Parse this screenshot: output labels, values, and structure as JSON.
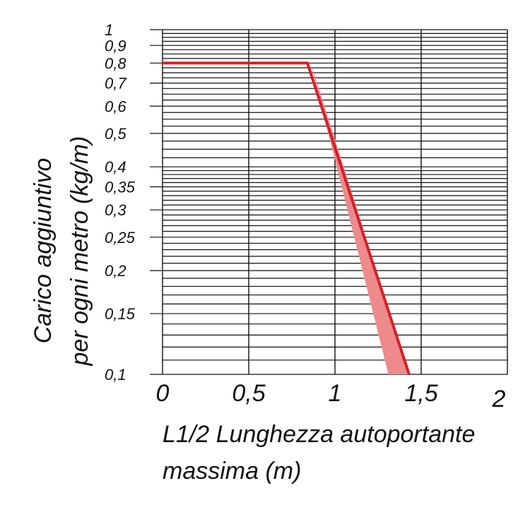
{
  "chart_data": {
    "type": "line",
    "title": "",
    "xlabel": [
      "L1/2 Lunghezza autoportante",
      "massima (m)"
    ],
    "ylabel": [
      "Carico aggiuntivo",
      "per ogni metro (kg/m)"
    ],
    "xlim": [
      0,
      2
    ],
    "ylim": [
      0.1,
      1
    ],
    "y_scale": "log",
    "grid": true,
    "x_ticks": [
      {
        "value": 0,
        "label": "0"
      },
      {
        "value": 0.5,
        "label": "0,5"
      },
      {
        "value": 1,
        "label": "1"
      },
      {
        "value": 1.5,
        "label": "1,5"
      },
      {
        "value": 2,
        "label": "2"
      }
    ],
    "y_ticks": [
      {
        "value": 1,
        "label": "1"
      },
      {
        "value": 0.9,
        "label": "0,9"
      },
      {
        "value": 0.8,
        "label": "0,8"
      },
      {
        "value": 0.7,
        "label": "0,7"
      },
      {
        "value": 0.6,
        "label": "0,6"
      },
      {
        "value": 0.5,
        "label": "0,5"
      },
      {
        "value": 0.4,
        "label": "0,4"
      },
      {
        "value": 0.35,
        "label": "0,35"
      },
      {
        "value": 0.3,
        "label": "0,3"
      },
      {
        "value": 0.25,
        "label": "0,25"
      },
      {
        "value": 0.2,
        "label": "0,2"
      },
      {
        "value": 0.15,
        "label": "0,15"
      },
      {
        "value": 0.1,
        "label": "0,1"
      }
    ],
    "series": [
      {
        "points": [
          [
            0,
            0.8
          ],
          [
            0.84,
            0.8
          ],
          [
            1.43,
            0.1
          ]
        ],
        "color": "#d71f26"
      }
    ],
    "band": {
      "points": [
        [
          0.86,
          0.8
        ],
        [
          1.43,
          0.1
        ],
        [
          1.31,
          0.1
        ]
      ],
      "color": "#ec8a8c"
    }
  }
}
